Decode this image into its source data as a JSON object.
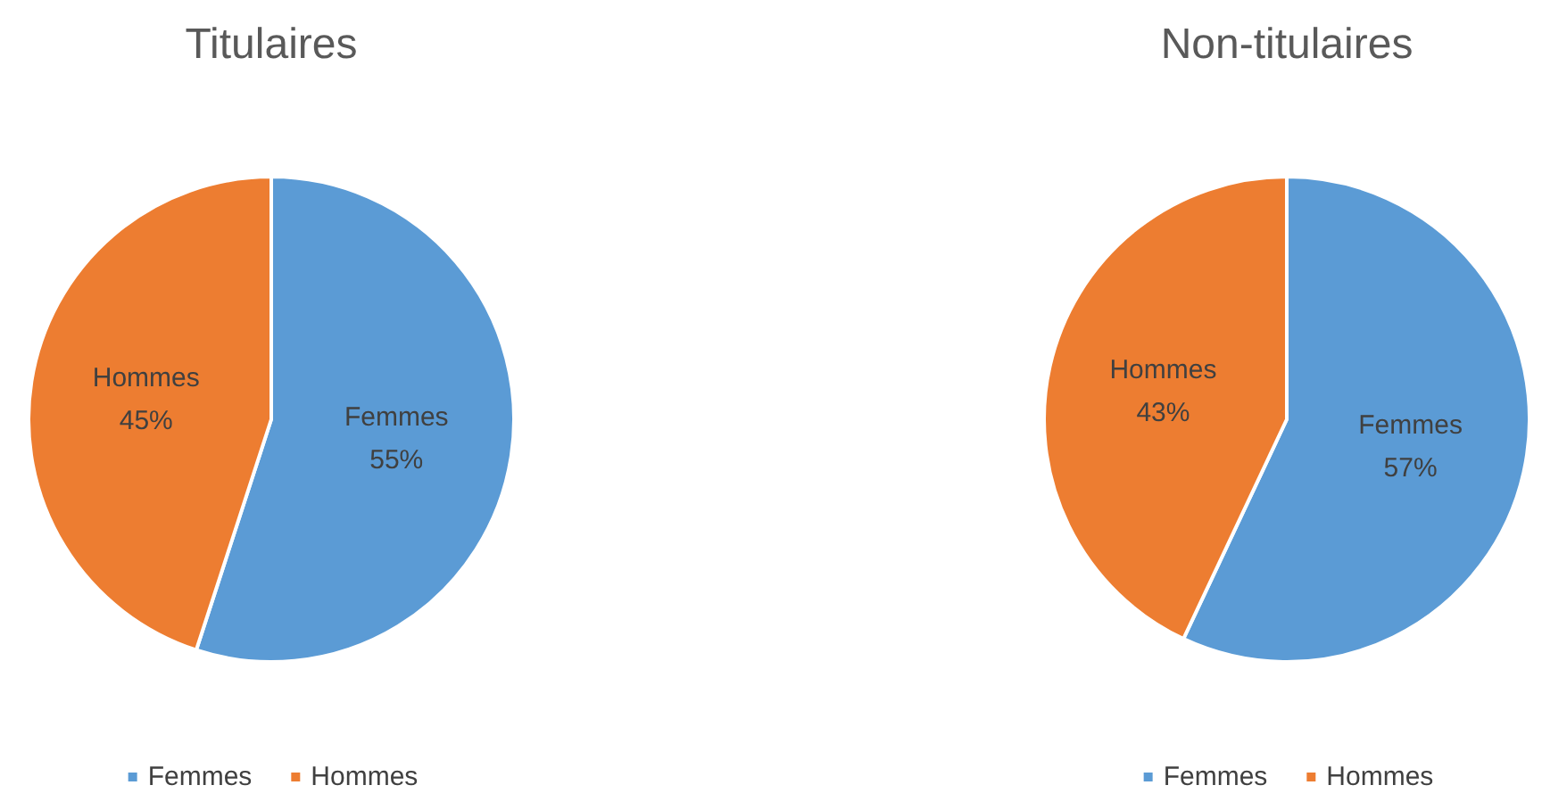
{
  "chart_data": [
    {
      "type": "pie",
      "title": "Titulaires",
      "categories": [
        "Femmes",
        "Hommes"
      ],
      "values": [
        55,
        45
      ],
      "colors": [
        "#5b9bd5",
        "#ed7d31"
      ],
      "value_labels": [
        "55%",
        "45%"
      ],
      "legend": "bottom"
    },
    {
      "type": "pie",
      "title": "Non-titulaires",
      "categories": [
        "Femmes",
        "Hommes"
      ],
      "values": [
        57,
        43
      ],
      "colors": [
        "#5b9bd5",
        "#ed7d31"
      ],
      "value_labels": [
        "57%",
        "43%"
      ],
      "legend": "bottom"
    }
  ]
}
